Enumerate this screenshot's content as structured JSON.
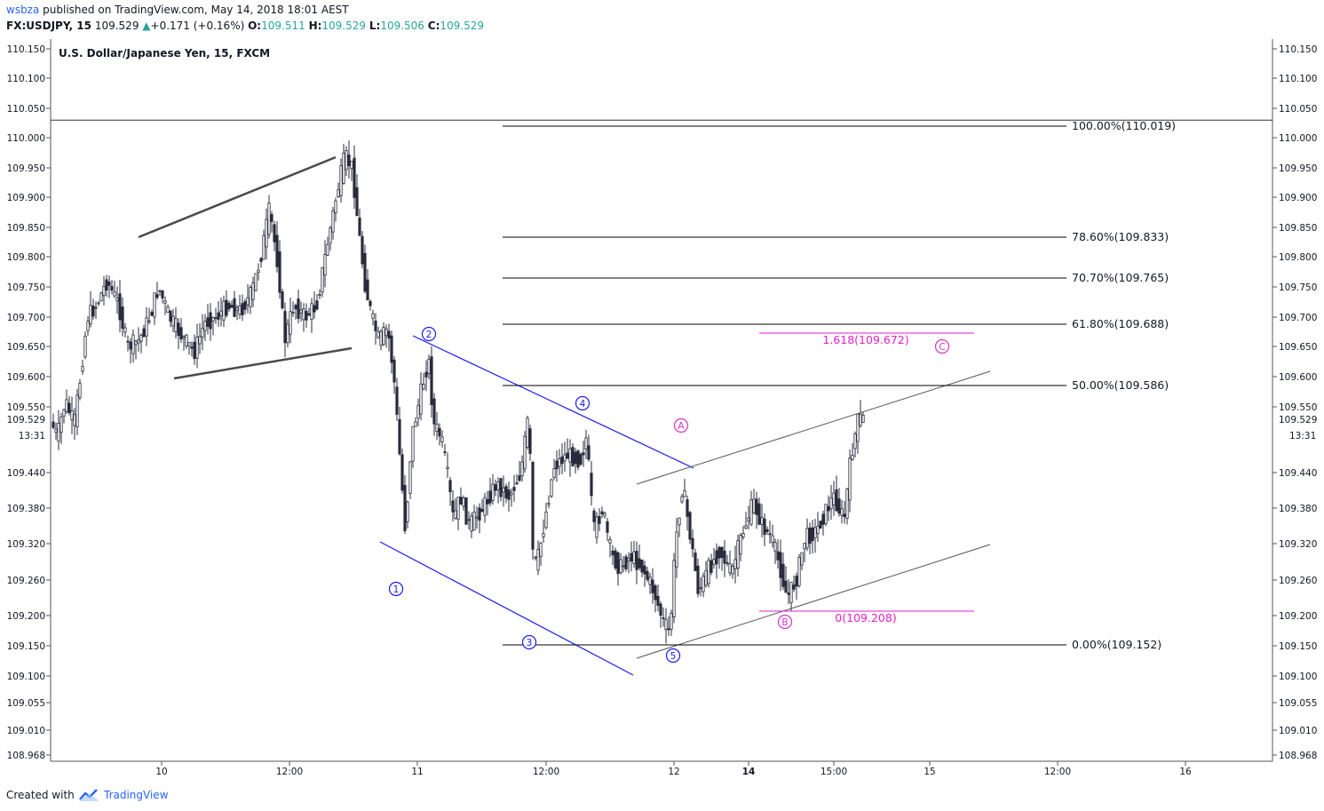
{
  "header": {
    "author": "wsbza",
    "published_text": "published on TradingView.com, May 14, 2018 18:01 AEST",
    "symbol": "FX:USDJPY, 15",
    "last": "109.529",
    "change": "+0.171 (+0.16%)",
    "ohlc": {
      "o_label": "O:",
      "o": "109.511",
      "h_label": "H:",
      "h": "109.529",
      "l_label": "L:",
      "l": "109.506",
      "c_label": "C:",
      "c": "109.529"
    },
    "up_color": "#26a69a"
  },
  "chart_data": {
    "type": "candlestick",
    "title": "U.S. Dollar/Japanese Yen, 15, FXCM",
    "y_ticks": [
      "110.150",
      "110.100",
      "110.050",
      "110.000",
      "109.950",
      "109.900",
      "109.850",
      "109.800",
      "109.750",
      "109.700",
      "109.650",
      "109.600",
      "109.550",
      "109.440",
      "109.380",
      "109.320",
      "109.260",
      "109.200",
      "109.150",
      "109.100",
      "109.055",
      "109.010",
      "108.968"
    ],
    "last_price_label": "109.529",
    "countdown_label": "13:31",
    "x_ticks": [
      "10",
      "12:00",
      "11",
      "12:00",
      "12",
      "14",
      "15:00",
      "15",
      "12:00",
      "16"
    ],
    "x_tick_bold": [
      false,
      false,
      false,
      false,
      false,
      true,
      false,
      false,
      false,
      false
    ],
    "horizontal_line": 110.03,
    "fib_retracement": {
      "color": "#000000",
      "levels": [
        {
          "label": "100.00%(110.019)",
          "price": 110.019
        },
        {
          "label": "78.60%(109.833)",
          "price": 109.833
        },
        {
          "label": "70.70%(109.765)",
          "price": 109.765
        },
        {
          "label": "61.80%(109.688)",
          "price": 109.688
        },
        {
          "label": "50.00%(109.586)",
          "price": 109.586
        },
        {
          "label": "0.00%(109.152)",
          "price": 109.152
        }
      ]
    },
    "fib_extension": {
      "color": "#e91ec8",
      "levels": [
        {
          "label": "1.618(109.672)",
          "price": 109.672
        },
        {
          "label": "0(109.208)",
          "price": 109.208
        }
      ]
    },
    "wave_labels_blue": [
      "1",
      "2",
      "3",
      "4",
      "5"
    ],
    "wave_labels_magenta": [
      "A",
      "B",
      "C"
    ],
    "colors": {
      "blue": "#1a1aff",
      "magenta": "#d633c5",
      "candle": "#2a2a3c",
      "axis_text": "#131722"
    }
  },
  "footer": {
    "created_with": "Created with",
    "brand": "TradingView"
  }
}
